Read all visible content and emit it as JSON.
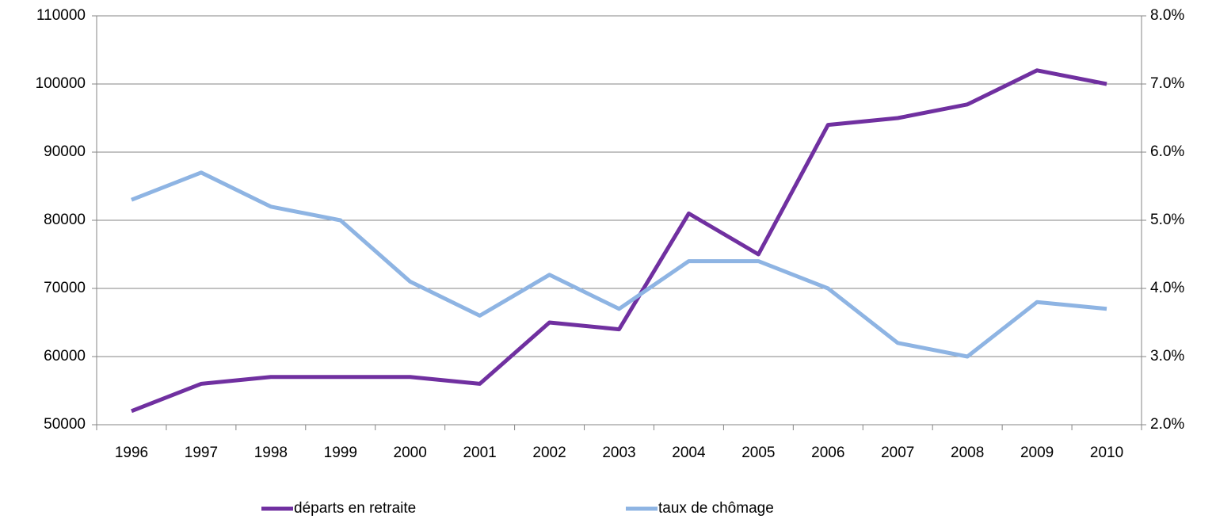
{
  "chart_data": {
    "type": "line",
    "categories": [
      "1996",
      "1997",
      "1998",
      "1999",
      "2000",
      "2001",
      "2002",
      "2003",
      "2004",
      "2005",
      "2006",
      "2007",
      "2008",
      "2009",
      "2010"
    ],
    "series": [
      {
        "name": "départs en retraite",
        "color": "#7030a0",
        "values": [
          52000,
          56000,
          57000,
          57000,
          57000,
          56000,
          65000,
          64000,
          81000,
          75000,
          94000,
          95000,
          97000,
          102000,
          100000
        ]
      },
      {
        "name": "taux de chômage",
        "color": "#8eb4e3",
        "axis": "y2",
        "values": [
          5.3,
          5.7,
          5.2,
          5.0,
          4.1,
          3.6,
          4.2,
          3.7,
          4.4,
          4.4,
          4.0,
          3.2,
          3.0,
          3.8,
          3.7
        ]
      }
    ],
    "ylim": [
      50000,
      110000
    ],
    "yticks": [
      50000,
      60000,
      70000,
      80000,
      90000,
      100000,
      110000
    ],
    "y2lim": [
      2,
      8
    ],
    "y2ticks": [
      {
        "value": 2,
        "label": "2.0%"
      },
      {
        "value": 3,
        "label": "3.0%"
      },
      {
        "value": 4,
        "label": "4.0%"
      },
      {
        "value": 5,
        "label": "5.0%"
      },
      {
        "value": 6,
        "label": "6.0%"
      },
      {
        "value": 7,
        "label": "7.0%"
      },
      {
        "value": 8,
        "label": "8.0%"
      }
    ],
    "grid": true,
    "legend": "bottom"
  }
}
